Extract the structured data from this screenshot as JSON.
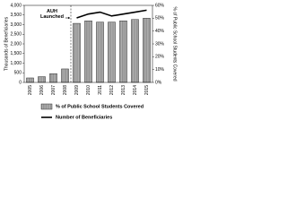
{
  "chart_data": {
    "type": "bar-line",
    "y_label": "Thousands of Beneficiaries",
    "y2_label": "% of Public School Students Covered",
    "annotation": "AUH Launched",
    "categories": [
      "2005",
      "2006",
      "2007",
      "2008",
      "2009",
      "2010",
      "2011",
      "2012",
      "2013",
      "2014",
      "2015"
    ],
    "series": [
      {
        "name": "% of Public School Students Covered",
        "type": "bar",
        "axis": "y2",
        "color": "#b5b5b5",
        "values": [
          3.5,
          4.5,
          6.8,
          10.5,
          46,
          48,
          47,
          47,
          48,
          49,
          50
        ]
      },
      {
        "name": "Number of Beneficiaries",
        "type": "line",
        "color": "#000000",
        "values": [
          null,
          null,
          null,
          null,
          3350,
          3550,
          3650,
          3450,
          3550,
          3650,
          3750
        ]
      }
    ],
    "ylim": [
      0,
      4000
    ],
    "yticks": [
      0,
      500,
      {
        "value": 1000,
        "label": "1,000"
      },
      {
        "value": 1500,
        "label": "1,500"
      },
      {
        "value": 2000,
        "label": "2,000"
      },
      {
        "value": 2500,
        "label": "2,500"
      },
      {
        "value": 3000,
        "label": "3,000"
      },
      {
        "value": 3500,
        "label": "3,500"
      },
      {
        "value": 4000,
        "label": "4,000"
      }
    ],
    "y2lim": [
      0,
      60
    ],
    "y2ticks": [
      {
        "value": 0,
        "label": "0%"
      },
      {
        "value": 10,
        "label": "10%"
      },
      {
        "value": 20,
        "label": "20%"
      },
      {
        "value": 30,
        "label": "30%"
      },
      {
        "value": 40,
        "label": "40%"
      },
      {
        "value": 50,
        "label": "50%"
      },
      {
        "value": 60,
        "label": "60%"
      }
    ]
  }
}
